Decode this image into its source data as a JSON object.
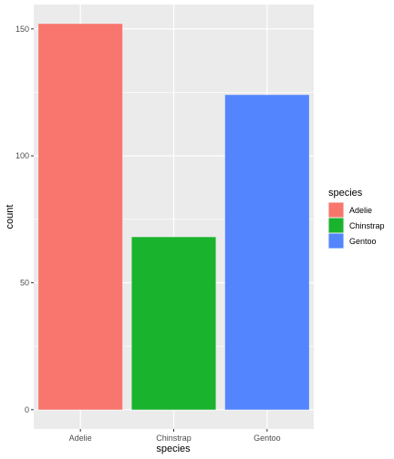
{
  "chart_data": {
    "type": "bar",
    "categories": [
      "Adelie",
      "Chinstrap",
      "Gentoo"
    ],
    "values": [
      152,
      68,
      124
    ],
    "colors": [
      "#F8766D",
      "#1AB32E",
      "#5385FE"
    ],
    "xlabel": "species",
    "ylabel": "count",
    "yticks": [
      0,
      50,
      100,
      150
    ],
    "ytick_labels": [
      "0",
      "50",
      "100",
      "150"
    ],
    "ylim": [
      -7.6,
      159.6
    ],
    "grid": true,
    "panel_background": "#EBEBEB",
    "legend": {
      "title": "species",
      "entries": [
        "Adelie",
        "Chinstrap",
        "Gentoo"
      ],
      "placement": "right"
    }
  }
}
